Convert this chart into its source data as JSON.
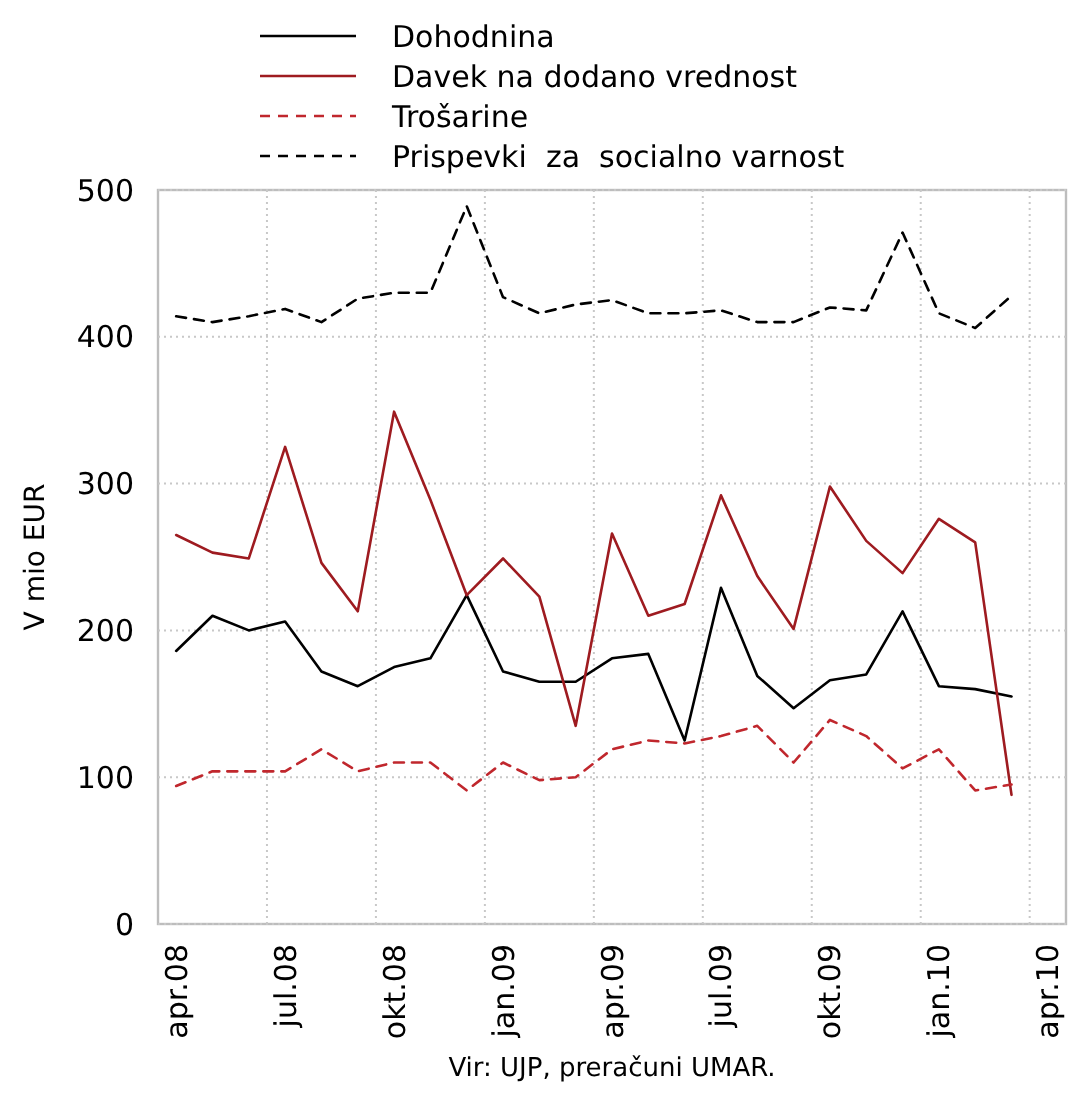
{
  "chart_data": {
    "type": "line",
    "ylabel": "V mio EUR",
    "annotations": [
      "Vir: UJP, preračuni UMAR."
    ],
    "categories": [
      "apr.08",
      null,
      null,
      "jul.08",
      null,
      null,
      "okt.08",
      null,
      null,
      "jan.09",
      null,
      null,
      "apr.09",
      null,
      null,
      "jul.09",
      null,
      null,
      "okt.09",
      null,
      null,
      "jan.10",
      null,
      null,
      "apr.10"
    ],
    "series": [
      {
        "name": "Dohodnina",
        "color": "#000000",
        "line_style": "solid",
        "values": [
          186,
          210,
          200,
          206,
          172,
          162,
          175,
          181,
          224,
          172,
          165,
          165,
          181,
          184,
          125,
          229,
          169,
          147,
          166,
          170,
          213,
          162,
          160,
          155,
          null
        ]
      },
      {
        "name": "Davek na dodano vrednost",
        "color": "#9e1b20",
        "line_style": "solid",
        "values": [
          265,
          253,
          249,
          325,
          246,
          213,
          349,
          289,
          224,
          249,
          223,
          135,
          266,
          210,
          218,
          292,
          237,
          201,
          298,
          261,
          239,
          276,
          260,
          88,
          null
        ]
      },
      {
        "name": "Trošarine",
        "color": "#c0272d",
        "line_style": "dashed",
        "values": [
          94,
          104,
          104,
          104,
          119,
          104,
          110,
          110,
          91,
          110,
          98,
          100,
          119,
          125,
          123,
          128,
          135,
          110,
          139,
          128,
          106,
          119,
          91,
          95,
          null
        ]
      },
      {
        "name": "Prispevki  za  socialno varnost",
        "color": "#000000",
        "line_style": "dashed",
        "values": [
          414,
          410,
          414,
          419,
          410,
          426,
          430,
          430,
          489,
          427,
          416,
          422,
          425,
          416,
          416,
          418,
          410,
          410,
          420,
          418,
          471,
          416,
          406,
          428,
          null
        ]
      }
    ],
    "ylim": [
      0,
      500
    ],
    "yticks": [
      0,
      100,
      200,
      300,
      400,
      500
    ],
    "grid": true,
    "legend": "top",
    "marker": "none"
  }
}
